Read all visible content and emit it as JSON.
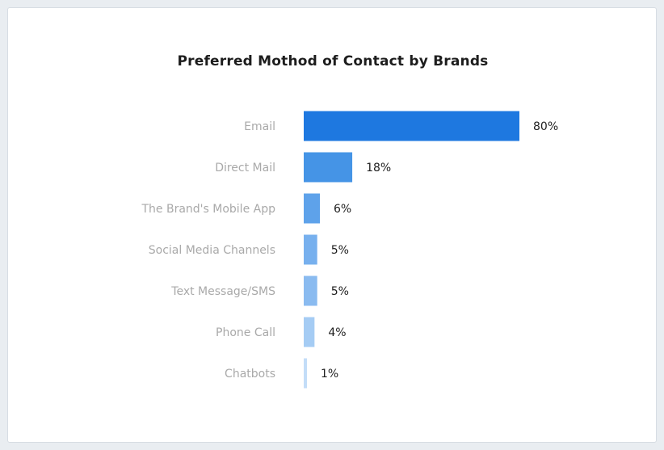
{
  "chart_data": {
    "type": "bar",
    "orientation": "horizontal",
    "title": "Preferred Mothod of Contact by Brands",
    "categories": [
      "Email",
      "Direct Mail",
      "The Brand's Mobile App",
      "Social Media Channels",
      "Text Message/SMS",
      "Phone Call",
      "Chatbots"
    ],
    "values": [
      80,
      18,
      6,
      5,
      5,
      4,
      1
    ],
    "value_labels": [
      "80%",
      "18%",
      "6%",
      "5%",
      "5%",
      "4%",
      "1%"
    ],
    "unit": "%",
    "xlim": [
      0,
      80
    ],
    "grid": false,
    "legend": "none",
    "bar_colors": [
      "#1e78e0",
      "#4594e6",
      "#5ea2ea",
      "#77b0ee",
      "#8abbf0",
      "#a5ccf4",
      "#c3ddf8"
    ]
  }
}
